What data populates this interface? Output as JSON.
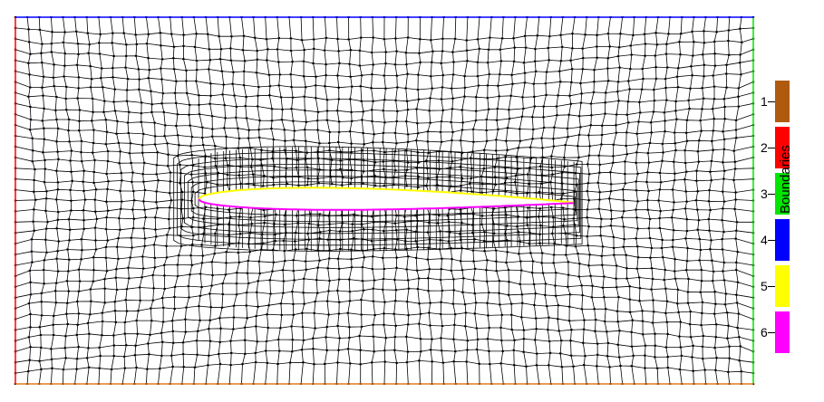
{
  "viewer": {
    "legend_title": "Boundaries",
    "background": "#ffffff",
    "mesh_color": "#000000",
    "node_color": "#000000"
  },
  "boundaries": [
    {
      "label": "1",
      "color": "#b05a10",
      "edge": "none"
    },
    {
      "label": "2",
      "color": "#ff0000",
      "edge": "left"
    },
    {
      "label": "3",
      "color": "#00e600",
      "edge": "right"
    },
    {
      "label": "4",
      "color": "#0000ff",
      "edge": "top"
    },
    {
      "label": "5",
      "color": "#ffff00",
      "edge": "airfoil-upper"
    },
    {
      "label": "6",
      "color": "#ff00ff",
      "edge": "airfoil-lower"
    }
  ],
  "bottom_edge_color": "#e07b20",
  "icons": {
    "mesh": "quad-mesh-icon",
    "airfoil": "airfoil-icon"
  }
}
